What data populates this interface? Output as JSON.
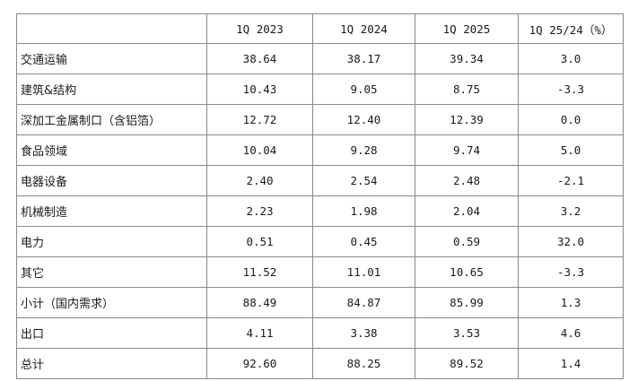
{
  "table": {
    "headers": [
      "",
      "1Q 2023",
      "1Q 2024",
      "1Q 2025",
      "1Q 25/24（%）"
    ],
    "rows": [
      {
        "label": "交通运输",
        "values": [
          "38.64",
          "38.17",
          "39.34",
          "3.0"
        ]
      },
      {
        "label": "建筑&结构",
        "values": [
          "10.43",
          "9.05",
          "8.75",
          "-3.3"
        ]
      },
      {
        "label": "深加工金属制口（含铝箔）",
        "values": [
          "12.72",
          "12.40",
          "12.39",
          "0.0"
        ]
      },
      {
        "label": "食品领域",
        "values": [
          "10.04",
          "9.28",
          "9.74",
          "5.0"
        ]
      },
      {
        "label": "电器设备",
        "values": [
          "2.40",
          "2.54",
          "2.48",
          "-2.1"
        ]
      },
      {
        "label": "机械制造",
        "values": [
          "2.23",
          "1.98",
          "2.04",
          "3.2"
        ]
      },
      {
        "label": "电力",
        "values": [
          "0.51",
          "0.45",
          "0.59",
          "32.0"
        ]
      },
      {
        "label": "其它",
        "values": [
          "11.52",
          "11.01",
          "10.65",
          "-3.3"
        ]
      },
      {
        "label": "小计（国内需求）",
        "values": [
          "88.49",
          "84.87",
          "85.99",
          "1.3"
        ]
      },
      {
        "label": "出口",
        "values": [
          "4.11",
          "3.38",
          "3.53",
          "4.6"
        ]
      },
      {
        "label": "总计",
        "values": [
          "92.60",
          "88.25",
          "89.52",
          "1.4"
        ]
      }
    ]
  }
}
